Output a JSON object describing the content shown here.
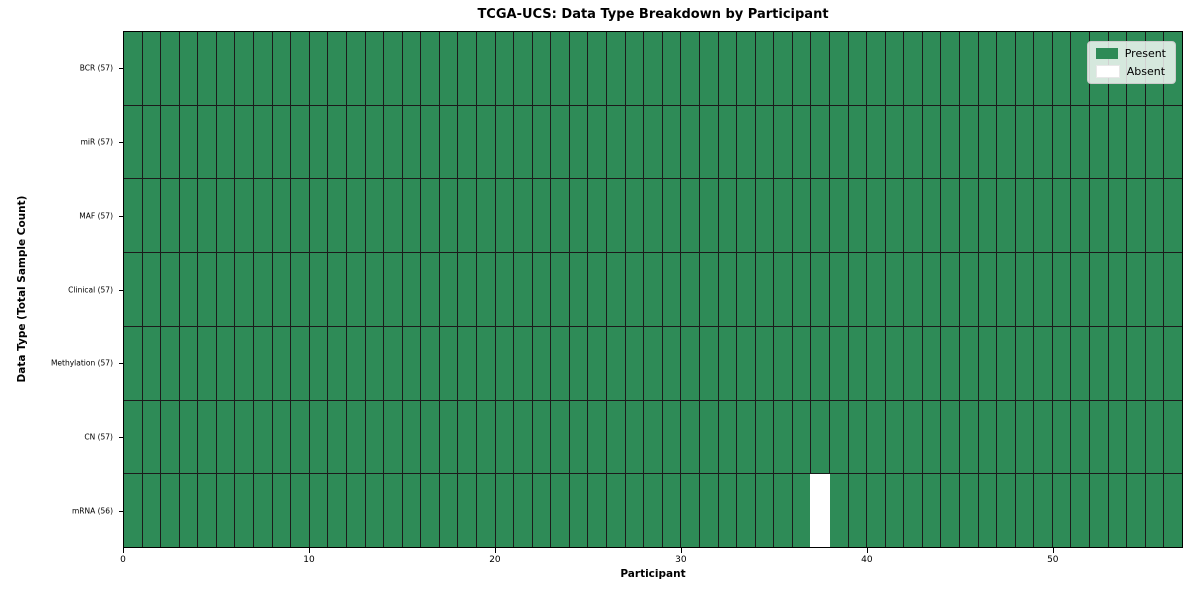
{
  "chart_data": {
    "type": "heatmap",
    "title": "TCGA-UCS: Data Type Breakdown by Participant",
    "xlabel": "Participant",
    "ylabel": "Data Type (Total Sample Count)",
    "xlim": [
      0,
      57
    ],
    "x_ticks": [
      0,
      10,
      20,
      30,
      40,
      50
    ],
    "n_participants": 57,
    "grid": true,
    "legend_position": "upper right",
    "rows": [
      {
        "label": "BCR (57)",
        "data_type": "BCR",
        "total": 57,
        "absent_participants": []
      },
      {
        "label": "miR (57)",
        "data_type": "miR",
        "total": 57,
        "absent_participants": []
      },
      {
        "label": "MAF (57)",
        "data_type": "MAF",
        "total": 57,
        "absent_participants": []
      },
      {
        "label": "Clinical (57)",
        "data_type": "Clinical",
        "total": 57,
        "absent_participants": []
      },
      {
        "label": "Methylation (57)",
        "data_type": "Methylation",
        "total": 57,
        "absent_participants": []
      },
      {
        "label": "CN (57)",
        "data_type": "CN",
        "total": 57,
        "absent_participants": []
      },
      {
        "label": "mRNA (56)",
        "data_type": "mRNA",
        "total": 56,
        "absent_participants": [
          37
        ]
      }
    ],
    "legend": [
      {
        "label": "Present",
        "color": "#2e8b57"
      },
      {
        "label": "Absent",
        "color": "#ffffff"
      }
    ],
    "colors": {
      "present": "#2e8b57",
      "absent": "#ffffff",
      "grid_line": "#1b1b1b",
      "spine": "#000000"
    }
  }
}
